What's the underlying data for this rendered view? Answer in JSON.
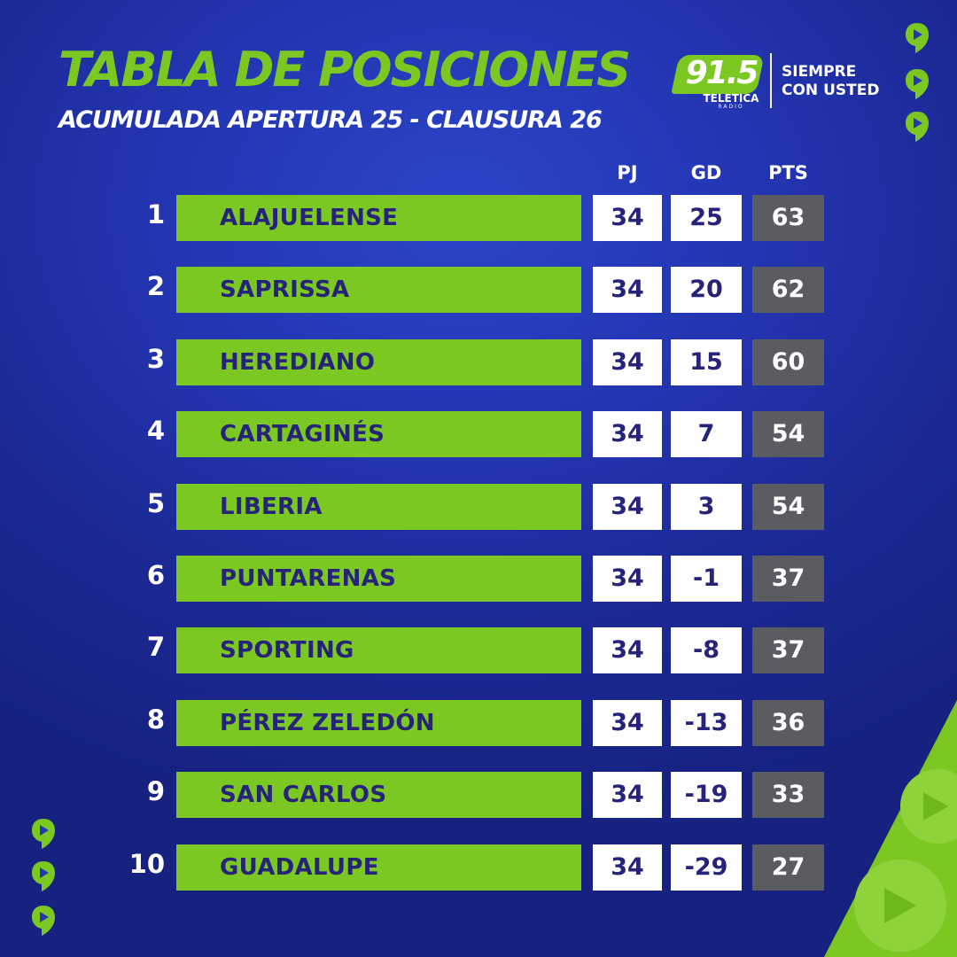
{
  "header": {
    "title": "TABLA DE POSICIONES",
    "subtitle": "ACUMULADA APERTURA 25 - CLAUSURA 26"
  },
  "brand": {
    "frequency": "91.5",
    "name": "TELETICA",
    "sub": "RADIO",
    "slogan_line1": "SIEMPRE",
    "slogan_line2": "CON USTED",
    "accent_color": "#7cc823"
  },
  "colors": {
    "background": "#2436b4",
    "team_bar": "#7cc823",
    "text_dark": "#27237a",
    "points_cell": "#5b5c62"
  },
  "table": {
    "columns": {
      "pj": "PJ",
      "gd": "GD",
      "pts": "PTS"
    },
    "rows": [
      {
        "rank": "1",
        "team": "ALAJUELENSE",
        "pj": "34",
        "gd": "25",
        "pts": "63"
      },
      {
        "rank": "2",
        "team": "SAPRISSA",
        "pj": "34",
        "gd": "20",
        "pts": "62"
      },
      {
        "rank": "3",
        "team": "HEREDIANO",
        "pj": "34",
        "gd": "15",
        "pts": "60"
      },
      {
        "rank": "4",
        "team": "CARTAGINÉS",
        "pj": "34",
        "gd": "7",
        "pts": "54"
      },
      {
        "rank": "5",
        "team": "LIBERIA",
        "pj": "34",
        "gd": "3",
        "pts": "54"
      },
      {
        "rank": "6",
        "team": "PUNTARENAS",
        "pj": "34",
        "gd": "-1",
        "pts": "37"
      },
      {
        "rank": "7",
        "team": "SPORTING",
        "pj": "34",
        "gd": "-8",
        "pts": "37"
      },
      {
        "rank": "8",
        "team": "PÉREZ ZELEDÓN",
        "pj": "34",
        "gd": "-13",
        "pts": "36"
      },
      {
        "rank": "9",
        "team": "SAN CARLOS",
        "pj": "34",
        "gd": "-19",
        "pts": "33"
      },
      {
        "rank": "10",
        "team": "GUADALUPE",
        "pj": "34",
        "gd": "-29",
        "pts": "27"
      }
    ]
  },
  "decorations": {
    "icon": "play-bubble-icon"
  }
}
